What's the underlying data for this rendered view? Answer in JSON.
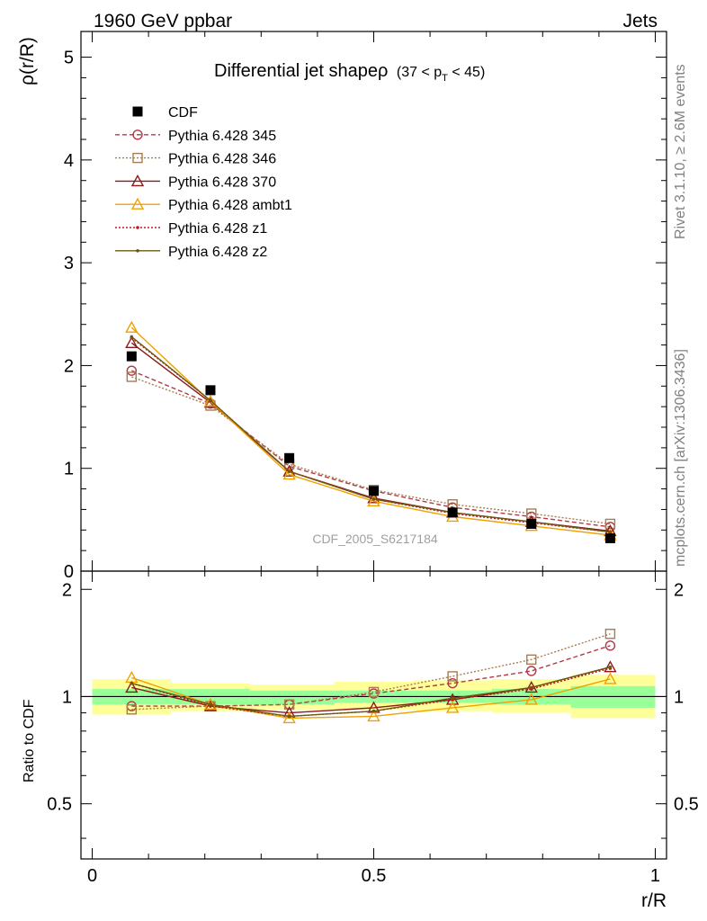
{
  "header": {
    "left": "1960 GeV ppbar",
    "right": "Jets"
  },
  "plot_title": {
    "main": "Differential jet shapeρ",
    "range_open": "(37 < p",
    "range_sub": "T",
    "range_close": " < 45)"
  },
  "side_text": {
    "rivet": "Rivet 3.1.10, ≥ 2.6M events",
    "mcplots": "mcplots.cern.ch [arXiv:1306.3436]"
  },
  "watermark": "CDF_2005_S6217184",
  "chart_data": [
    {
      "type": "scatter",
      "panel": "main",
      "xlabel": "",
      "ylabel": "ρ(r/R)",
      "xlim": [
        -0.02,
        1.02
      ],
      "ylim": [
        0,
        5.25
      ],
      "x_ticks": [
        "0",
        "0.5",
        "1"
      ],
      "y_ticks": [
        "0",
        "1",
        "2",
        "3",
        "4",
        "5"
      ],
      "legend_position": "top-left",
      "x": [
        0.07,
        0.21,
        0.35,
        0.5,
        0.64,
        0.78,
        0.92
      ],
      "series": [
        {
          "name": "CDF",
          "marker": "filled-square",
          "color": "#000000",
          "values": [
            2.09,
            1.76,
            1.1,
            0.78,
            0.57,
            0.46,
            0.32
          ]
        },
        {
          "name": "Pythia 6.428 345",
          "marker": "open-circle",
          "line": "dashed",
          "color": "#b03a48",
          "values": [
            1.95,
            1.63,
            1.02,
            0.78,
            0.62,
            0.53,
            0.43
          ]
        },
        {
          "name": "Pythia 6.428 346",
          "marker": "open-square",
          "line": "dotted",
          "color": "#a87c4f",
          "values": [
            1.89,
            1.61,
            1.04,
            0.79,
            0.65,
            0.56,
            0.46
          ]
        },
        {
          "name": "Pythia 6.428 370",
          "marker": "open-triangle",
          "line": "solid",
          "color": "#8b1a1a",
          "values": [
            2.22,
            1.64,
            0.97,
            0.71,
            0.57,
            0.48,
            0.39
          ]
        },
        {
          "name": "Pythia 6.428 ambt1",
          "marker": "open-triangle",
          "line": "solid",
          "color": "#f0a000",
          "values": [
            2.37,
            1.65,
            0.94,
            0.68,
            0.53,
            0.44,
            0.35
          ]
        },
        {
          "name": "Pythia 6.428 z1",
          "marker": "small-dot",
          "line": "dotted",
          "color": "#c0181a",
          "values": [
            2.27,
            1.66,
            0.97,
            0.7,
            0.56,
            0.47,
            0.38
          ]
        },
        {
          "name": "Pythia 6.428 z2",
          "marker": "small-dot",
          "line": "solid",
          "color": "#6b5a10",
          "values": [
            2.28,
            1.66,
            0.97,
            0.7,
            0.57,
            0.48,
            0.38
          ]
        }
      ]
    },
    {
      "type": "line",
      "panel": "ratio",
      "xlabel": "r/R",
      "ylabel": "Ratio to CDF",
      "xlim": [
        -0.02,
        1.02
      ],
      "ylim": [
        0.35,
        2.25
      ],
      "x_ticks": [
        "0",
        "0.5",
        "1"
      ],
      "y_ticks": [
        "0.5",
        "1",
        "2"
      ],
      "y_scale": "log",
      "x": [
        0.07,
        0.21,
        0.35,
        0.5,
        0.64,
        0.78,
        0.92
      ],
      "bands": {
        "x_edges": [
          0,
          0.14,
          0.28,
          0.43,
          0.57,
          0.71,
          0.85,
          1.0
        ],
        "inner": [
          [
            0.95,
            1.05
          ],
          [
            0.95,
            1.05
          ],
          [
            0.95,
            1.04
          ],
          [
            0.96,
            1.04
          ],
          [
            0.96,
            1.04
          ],
          [
            0.95,
            1.05
          ],
          [
            0.93,
            1.07
          ]
        ],
        "outer": [
          [
            0.89,
            1.12
          ],
          [
            0.91,
            1.09
          ],
          [
            0.92,
            1.08
          ],
          [
            0.92,
            1.1
          ],
          [
            0.91,
            1.11
          ],
          [
            0.9,
            1.12
          ],
          [
            0.87,
            1.15
          ]
        ],
        "inner_color": "#99ff99",
        "outer_color": "#ffff99"
      },
      "series": [
        {
          "name": "Pythia 6.428 345",
          "values": [
            0.94,
            0.94,
            0.95,
            1.02,
            1.09,
            1.18,
            1.39
          ]
        },
        {
          "name": "Pythia 6.428 346",
          "values": [
            0.92,
            0.94,
            0.95,
            1.03,
            1.14,
            1.27,
            1.5
          ]
        },
        {
          "name": "Pythia 6.428 370",
          "values": [
            1.06,
            0.94,
            0.9,
            0.93,
            0.98,
            1.06,
            1.21
          ]
        },
        {
          "name": "Pythia 6.428 ambt1",
          "values": [
            1.13,
            0.95,
            0.87,
            0.88,
            0.93,
            0.98,
            1.12
          ]
        },
        {
          "name": "Pythia 6.428 z1",
          "values": [
            1.09,
            0.94,
            0.88,
            0.91,
            0.98,
            1.05,
            1.2
          ]
        },
        {
          "name": "Pythia 6.428 z2",
          "values": [
            1.09,
            0.95,
            0.88,
            0.91,
            0.99,
            1.06,
            1.21
          ]
        }
      ]
    }
  ]
}
